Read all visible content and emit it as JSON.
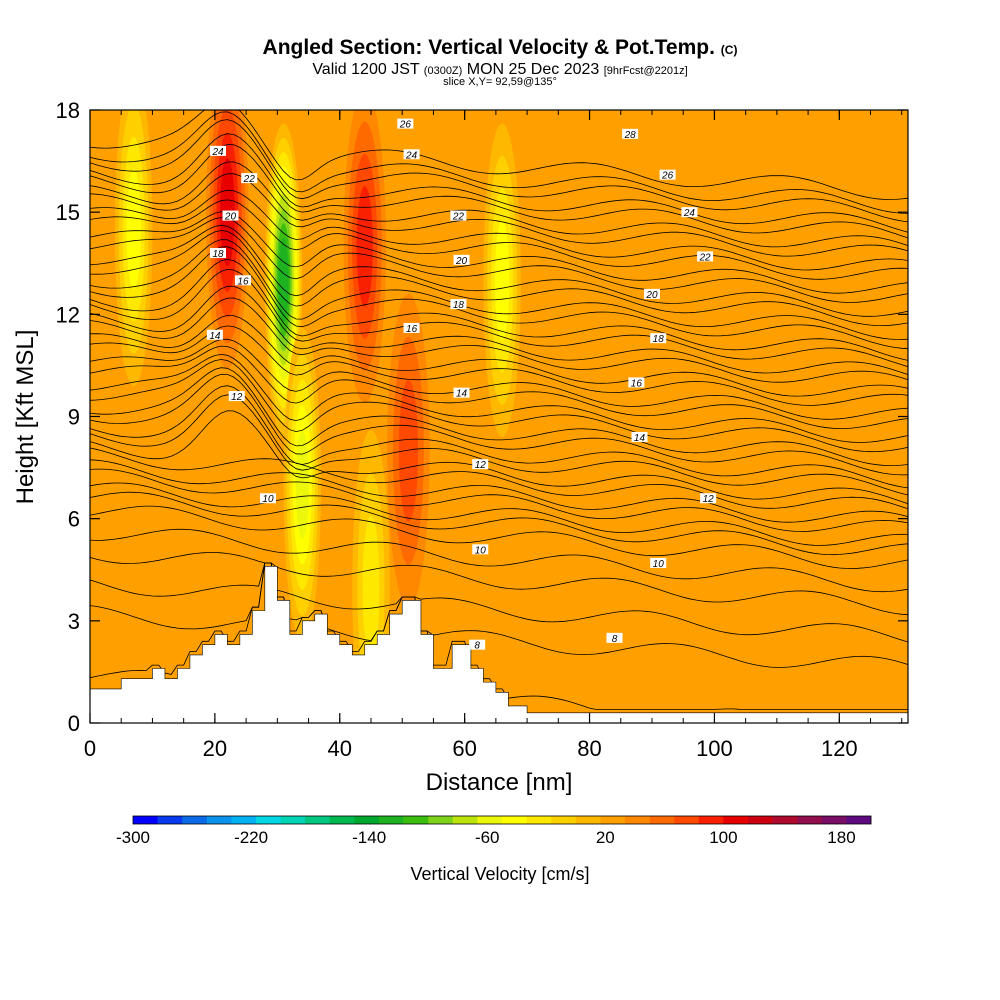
{
  "titles": {
    "main": "Angled Section: Vertical Velocity & Pot.Temp.",
    "main_unit": "(C)",
    "valid_prefix": "Valid 1200 JST",
    "valid_zulu": "(0300Z)",
    "valid_date": "MON 25 Dec 2023",
    "valid_fcst": "[9hrFcst@2201z]",
    "slice": "slice X,Y= 92,59@135°"
  },
  "chart_data": {
    "type": "heatmap",
    "title": "Angled Section: Vertical Velocity & Pot.Temp. (C)",
    "xlabel": "Distance [nm]",
    "ylabel": "Height [Kft MSL]",
    "xlim": [
      0,
      131
    ],
    "ylim": [
      0,
      18
    ],
    "x_ticks": [
      "0",
      "20",
      "40",
      "60",
      "80",
      "100",
      "120"
    ],
    "y_ticks": [
      "0",
      "3",
      "6",
      "9",
      "12",
      "15",
      "18"
    ],
    "colorbar": {
      "label": "Vertical Velocity [cm/s]",
      "tick_labels": [
        "-300",
        "-220",
        "-140",
        "-60",
        "20",
        "100",
        "180"
      ],
      "min": -300,
      "max": 200,
      "colors": [
        "#0000ff",
        "#0a3af0",
        "#0b6ae8",
        "#0a92ee",
        "#00b2f4",
        "#00d6e4",
        "#00d4b4",
        "#00c880",
        "#00b850",
        "#00a830",
        "#1fb220",
        "#3cbe10",
        "#7ed31a",
        "#bde30f",
        "#ecf70b",
        "#ffff00",
        "#ffe800",
        "#ffd000",
        "#ffb800",
        "#ffa000",
        "#ff8800",
        "#ff6a00",
        "#ff4800",
        "#f82000",
        "#e80000",
        "#cc0010",
        "#b00a2e",
        "#920e4c",
        "#7a0e66",
        "#5e0a80"
      ]
    },
    "background_velocity": 28,
    "velocity_bands": [
      {
        "x": 7,
        "z": 14.5,
        "value": -45
      },
      {
        "x": 22,
        "z": 15,
        "value": 115
      },
      {
        "x": 31,
        "z": 13,
        "value": -120
      },
      {
        "x": 34,
        "z": 7,
        "value": -60
      },
      {
        "x": 44,
        "z": 14,
        "value": 90
      },
      {
        "x": 51,
        "z": 8,
        "value": 70
      },
      {
        "x": 66,
        "z": 13,
        "value": -40
      },
      {
        "x": 45,
        "z": 4,
        "value": -30
      }
    ],
    "terrain": {
      "x": [
        0,
        5,
        5,
        10,
        10,
        12,
        12,
        14,
        14,
        16,
        16,
        18,
        18,
        20,
        20,
        22,
        22,
        24,
        24,
        26,
        26,
        28,
        28,
        30,
        30,
        32,
        32,
        34,
        34,
        36,
        36,
        38,
        38,
        40,
        40,
        42,
        42,
        44,
        44,
        46,
        46,
        48,
        48,
        50,
        50,
        53,
        53,
        55,
        55,
        58,
        58,
        61,
        61,
        63,
        63,
        65,
        65,
        67,
        67,
        70,
        70,
        131
      ],
      "z": [
        1.0,
        1.0,
        1.3,
        1.3,
        1.6,
        1.6,
        1.3,
        1.3,
        1.6,
        1.6,
        2.0,
        2.0,
        2.3,
        2.3,
        2.6,
        2.6,
        2.3,
        2.3,
        2.6,
        2.6,
        3.3,
        3.3,
        4.6,
        4.6,
        3.6,
        3.6,
        2.6,
        2.6,
        3.0,
        3.0,
        3.2,
        3.2,
        2.6,
        2.6,
        2.3,
        2.3,
        2.0,
        2.0,
        2.3,
        2.3,
        2.6,
        2.6,
        3.2,
        3.2,
        3.6,
        3.6,
        2.6,
        2.6,
        1.6,
        1.6,
        2.3,
        2.3,
        1.6,
        1.6,
        1.2,
        1.2,
        0.9,
        0.9,
        0.5,
        0.5,
        0.3,
        0.3
      ]
    },
    "isentropes": [
      6,
      8,
      9,
      10,
      11,
      12,
      12.6,
      13,
      13.6,
      14,
      14.6,
      15,
      15.6,
      16,
      16.6,
      17,
      17.6,
      18,
      18.6,
      19,
      19.6,
      20,
      20.6,
      21,
      21.6,
      22,
      22.6,
      23,
      23.6,
      24,
      24.6,
      25,
      25.6,
      26,
      26.6,
      27,
      27.6,
      28,
      28.6,
      29,
      29.6
    ],
    "contour_labels": [
      {
        "text": "24",
        "x": 20.5,
        "z": 16.8
      },
      {
        "text": "22",
        "x": 25.5,
        "z": 16.0
      },
      {
        "text": "20",
        "x": 22.5,
        "z": 14.9
      },
      {
        "text": "18",
        "x": 20.5,
        "z": 13.8
      },
      {
        "text": "16",
        "x": 24.5,
        "z": 13.0
      },
      {
        "text": "14",
        "x": 20.0,
        "z": 11.4
      },
      {
        "text": "12",
        "x": 23.5,
        "z": 9.6
      },
      {
        "text": "10",
        "x": 28.5,
        "z": 6.6
      },
      {
        "text": "26",
        "x": 50.5,
        "z": 17.6
      },
      {
        "text": "24",
        "x": 51.5,
        "z": 16.7
      },
      {
        "text": "22",
        "x": 59.0,
        "z": 14.9
      },
      {
        "text": "20",
        "x": 59.5,
        "z": 13.6
      },
      {
        "text": "18",
        "x": 59.0,
        "z": 12.3
      },
      {
        "text": "16",
        "x": 51.5,
        "z": 11.6
      },
      {
        "text": "14",
        "x": 59.5,
        "z": 9.7
      },
      {
        "text": "12",
        "x": 62.5,
        "z": 7.6
      },
      {
        "text": "10",
        "x": 62.5,
        "z": 5.1
      },
      {
        "text": "8",
        "x": 62.0,
        "z": 2.3
      },
      {
        "text": "28",
        "x": 86.5,
        "z": 17.3
      },
      {
        "text": "26",
        "x": 92.5,
        "z": 16.1
      },
      {
        "text": "24",
        "x": 96.0,
        "z": 15.0
      },
      {
        "text": "22",
        "x": 98.5,
        "z": 13.7
      },
      {
        "text": "20",
        "x": 90.0,
        "z": 12.6
      },
      {
        "text": "18",
        "x": 91.0,
        "z": 11.3
      },
      {
        "text": "16",
        "x": 87.5,
        "z": 10.0
      },
      {
        "text": "14",
        "x": 88.0,
        "z": 8.4
      },
      {
        "text": "12",
        "x": 99.0,
        "z": 6.6
      },
      {
        "text": "10",
        "x": 91.0,
        "z": 4.7
      },
      {
        "text": "8",
        "x": 84.0,
        "z": 2.5
      }
    ]
  }
}
